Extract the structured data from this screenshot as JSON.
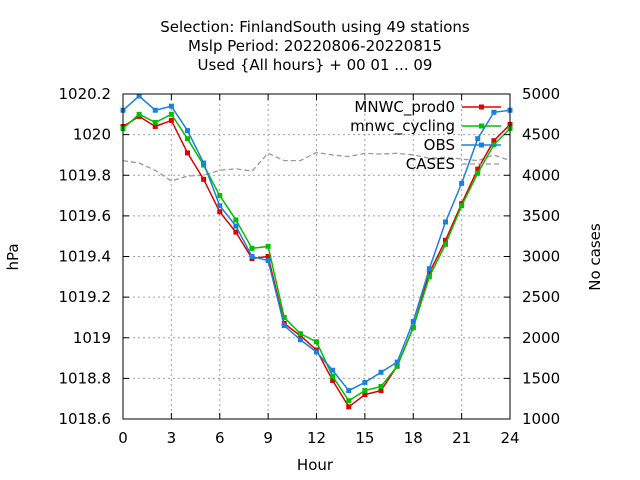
{
  "chart_data": {
    "type": "line",
    "title_lines": [
      "Selection: FinlandSouth using    49 stations",
      "Mslp   Period: 20220806-20220815",
      "Used {All hours} + 00 01 ... 09"
    ],
    "xlabel": "Hour",
    "ylabel": "hPa",
    "y2label": "No cases",
    "xlim": [
      0,
      24
    ],
    "ylim": [
      1018.6,
      1020.2
    ],
    "y2lim": [
      1000,
      5000
    ],
    "xticks": [
      "0",
      "3",
      "6",
      "9",
      "12",
      "15",
      "18",
      "21",
      "24"
    ],
    "yticks": [
      "1018.6",
      "1018.8",
      "1019",
      "1019.2",
      "1019.4",
      "1019.6",
      "1019.8",
      "1020",
      "1020.2"
    ],
    "y2ticks": [
      "1000",
      "1500",
      "2000",
      "2500",
      "3000",
      "3500",
      "4000",
      "4500",
      "5000"
    ],
    "grid": true,
    "legend_position": "top-right",
    "x": [
      0,
      1,
      2,
      3,
      4,
      5,
      6,
      7,
      8,
      9,
      10,
      11,
      12,
      13,
      14,
      15,
      16,
      17,
      18,
      19,
      20,
      21,
      22,
      23,
      24
    ],
    "series": [
      {
        "name": "MNWC_prod0",
        "color": "#e00000",
        "marker": "square",
        "axis": "left",
        "values": [
          1020.04,
          1020.09,
          1020.04,
          1020.07,
          1019.91,
          1019.78,
          1019.62,
          1019.52,
          1019.39,
          1019.4,
          1019.07,
          1019.01,
          1018.94,
          1018.79,
          1018.66,
          1018.72,
          1018.74,
          1018.86,
          1019.05,
          1019.32,
          1019.48,
          1019.66,
          1019.83,
          1019.97,
          1020.05
        ]
      },
      {
        "name": "mnwc_cycling",
        "color": "#00c000",
        "marker": "square",
        "axis": "left",
        "values": [
          1020.03,
          1020.1,
          1020.06,
          1020.1,
          1019.98,
          1019.85,
          1019.7,
          1019.58,
          1019.44,
          1019.45,
          1019.1,
          1019.02,
          1018.98,
          1018.81,
          1018.69,
          1018.74,
          1018.76,
          1018.86,
          1019.05,
          1019.3,
          1019.46,
          1019.65,
          1019.81,
          1019.95,
          1020.03
        ]
      },
      {
        "name": "OBS",
        "color": "#1a80e0",
        "marker": "square",
        "axis": "left",
        "values": [
          1020.12,
          1020.19,
          1020.12,
          1020.14,
          1020.02,
          1019.86,
          1019.65,
          1019.55,
          1019.4,
          1019.38,
          1019.06,
          1018.99,
          1018.93,
          1018.84,
          1018.74,
          1018.78,
          1018.83,
          1018.88,
          1019.08,
          1019.34,
          1019.57,
          1019.76,
          1019.98,
          1020.11,
          1020.12
        ]
      },
      {
        "name": "CASES",
        "color": "#999999",
        "marker": "none",
        "dashed": true,
        "axis": "right",
        "values": [
          4180,
          4150,
          4060,
          3930,
          3990,
          4000,
          4060,
          4080,
          4050,
          4270,
          4180,
          4180,
          4280,
          4250,
          4230,
          4270,
          4260,
          4270,
          4250,
          4210,
          4220,
          4200,
          4180,
          4250,
          4180
        ]
      }
    ]
  }
}
